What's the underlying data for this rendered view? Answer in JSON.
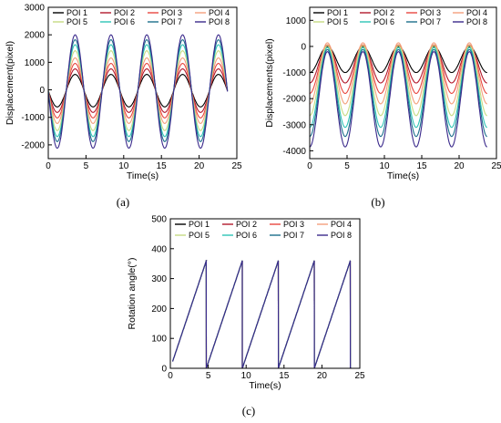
{
  "colors": [
    "#000000",
    "#b2182b",
    "#e8473f",
    "#f4a07c",
    "#c6dc82",
    "#2ec4b6",
    "#1c6e8c",
    "#3b2a8c"
  ],
  "chart_data": [
    {
      "panel": "a",
      "caption": "(a)",
      "type": "line",
      "xlabel": "Time(s)",
      "ylabel": "Displacement(pixel)",
      "xlim": [
        0,
        25
      ],
      "ylim": [
        -2500,
        3000
      ],
      "xticks": [
        0,
        5,
        10,
        15,
        20,
        25
      ],
      "yticks": [
        -2000,
        -1000,
        0,
        1000,
        2000,
        3000
      ],
      "legend_position": "top",
      "period": 4.75,
      "x_end": 23.8,
      "series": [
        {
          "name": "POI 1",
          "min": -620,
          "max": 560
        },
        {
          "name": "POI 2",
          "min": -820,
          "max": 760
        },
        {
          "name": "POI 3",
          "min": -1020,
          "max": 960
        },
        {
          "name": "POI 4",
          "min": -1220,
          "max": 1160
        },
        {
          "name": "POI 5",
          "min": -1480,
          "max": 1420
        },
        {
          "name": "POI 6",
          "min": -1700,
          "max": 1640
        },
        {
          "name": "POI 7",
          "min": -1880,
          "max": 1820
        },
        {
          "name": "POI 8",
          "min": -2120,
          "max": 2000
        }
      ]
    },
    {
      "panel": "b",
      "caption": "(b)",
      "type": "line",
      "xlabel": "Time(s)",
      "ylabel": "Displacements(pixel)",
      "xlim": [
        0,
        25
      ],
      "ylim": [
        -4300,
        1500
      ],
      "xticks": [
        0,
        5,
        10,
        15,
        20,
        25
      ],
      "yticks": [
        -4000,
        -3000,
        -2000,
        -1000,
        0,
        1000
      ],
      "legend_position": "top",
      "period": 4.75,
      "x_end": 23.8,
      "series": [
        {
          "name": "POI 1",
          "min": -1000,
          "max": 0
        },
        {
          "name": "POI 2",
          "min": -1400,
          "max": 20
        },
        {
          "name": "POI 3",
          "min": -1800,
          "max": 60
        },
        {
          "name": "POI 4",
          "min": -2200,
          "max": 140
        },
        {
          "name": "POI 5",
          "min": -2650,
          "max": 40
        },
        {
          "name": "POI 6",
          "min": -3100,
          "max": -40
        },
        {
          "name": "POI 7",
          "min": -3450,
          "max": -120
        },
        {
          "name": "POI 8",
          "min": -3850,
          "max": -200
        }
      ]
    },
    {
      "panel": "c",
      "caption": "(c)",
      "type": "line",
      "xlabel": "Time(s)",
      "ylabel": "Rotation angle(°)",
      "xlim": [
        0,
        25
      ],
      "ylim": [
        0,
        500
      ],
      "xticks": [
        0,
        5,
        10,
        15,
        20,
        25
      ],
      "yticks": [
        0,
        100,
        200,
        300,
        400,
        500
      ],
      "legend_position": "top",
      "period": 4.75,
      "x_end": 23.8,
      "angle_max": 360,
      "series": [
        {
          "name": "POI 1"
        },
        {
          "name": "POI 2"
        },
        {
          "name": "POI 3"
        },
        {
          "name": "POI 4"
        },
        {
          "name": "POI 5"
        },
        {
          "name": "POI 6"
        },
        {
          "name": "POI 7"
        },
        {
          "name": "POI 8"
        }
      ]
    }
  ]
}
